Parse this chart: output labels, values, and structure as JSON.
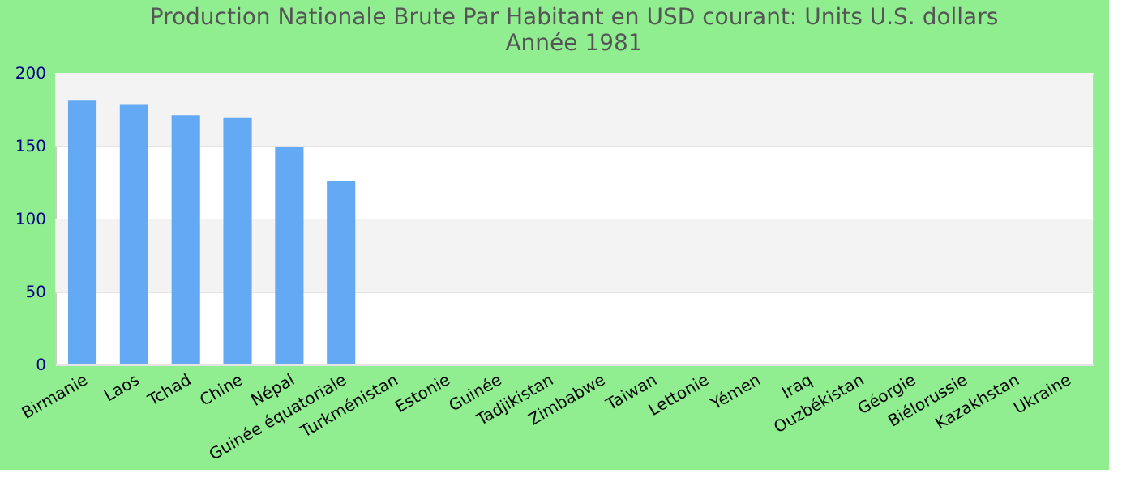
{
  "chart_data": {
    "type": "bar",
    "title": [
      "Production Nationale Brute Par Habitant en USD courant: Units U.S. dollars",
      "Année 1981"
    ],
    "categories": [
      "Birmanie",
      "Laos",
      "Tchad",
      "Chine",
      "Népal",
      "Guinée équatoriale",
      "Turkménistan",
      "Estonie",
      "Guinée",
      "Tadjikistan",
      "Zimbabwe",
      "Taiwan",
      "Lettonie",
      "Yémen",
      "Iraq",
      "Ouzbékistan",
      "Géorgie",
      "Biélorussie",
      "Kazakhstan",
      "Ukraine"
    ],
    "values": [
      181,
      178,
      171,
      169,
      149,
      126,
      null,
      null,
      null,
      null,
      null,
      null,
      null,
      null,
      null,
      null,
      null,
      null,
      null,
      null
    ],
    "color": "#63a9f4",
    "ylim": [
      0,
      200
    ],
    "yticks": [
      0,
      50,
      100,
      150,
      200
    ],
    "grid": "y"
  }
}
